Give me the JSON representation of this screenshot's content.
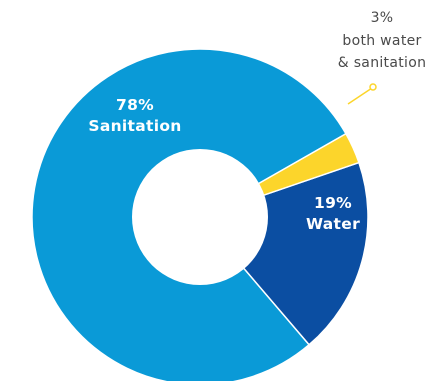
{
  "chart_data": {
    "type": "pie",
    "variant": "donut",
    "title": "",
    "slices": [
      {
        "name": "Sanitation",
        "value": 78,
        "label_value": "78%",
        "label_name": "Sanitation",
        "color": "#0a9ad7",
        "label_position": "inside"
      },
      {
        "name": "Water",
        "value": 19,
        "label_value": "19%",
        "label_name": "Water",
        "color": "#0b4ea2",
        "label_position": "inside"
      },
      {
        "name": "both water & sanitation",
        "value": 3,
        "label_value": "3%",
        "label_lines": [
          "both water",
          "& sanitation"
        ],
        "color": "#fcd52b",
        "label_position": "outside-callout"
      }
    ]
  }
}
